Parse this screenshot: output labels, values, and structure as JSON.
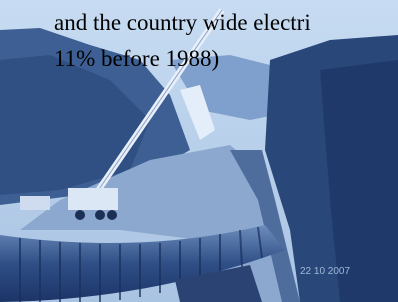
{
  "text": {
    "lines": [
      "and the country wide electri",
      "11% before 1988)"
    ]
  },
  "photo": {
    "timestamp": "22 10 2007"
  }
}
